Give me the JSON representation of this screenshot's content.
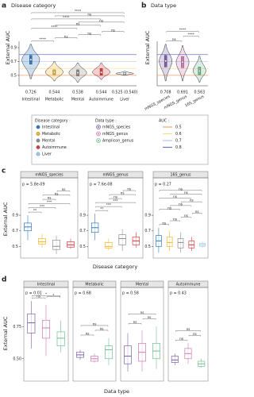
{
  "chart_data": [
    {
      "type": "violin",
      "panel_label": "a",
      "title": "Disease category",
      "y_label": "External AUC",
      "categories": [
        "Intestinal",
        "Metabolic",
        "Mental",
        "Autoimmune",
        "Liver"
      ],
      "values": [
        0.726,
        0.544,
        0.538,
        0.544,
        0.525
      ],
      "value_labels": [
        "0.726",
        "0.544",
        "0.538",
        "0.544",
        "0.525 (0.540)"
      ],
      "q1": [
        0.66,
        0.51,
        0.49,
        0.5,
        0.51
      ],
      "q3": [
        0.79,
        0.58,
        0.58,
        0.6,
        0.54
      ],
      "min": [
        0.45,
        0.42,
        0.4,
        0.44,
        0.5
      ],
      "max": [
        0.95,
        0.7,
        0.68,
        0.68,
        0.56
      ],
      "colors": [
        "#2e7bbf",
        "#f2b824",
        "#8c8c8c",
        "#e0383d",
        "#9ecae8"
      ],
      "ylim": [
        0.35,
        1.45
      ],
      "yticks": [
        0.5,
        0.7,
        0.9
      ],
      "comparisons": [
        {
          "pair": [
            0,
            1
          ],
          "label": "****"
        },
        {
          "pair": [
            1,
            2
          ],
          "label": "ns"
        },
        {
          "pair": [
            2,
            3
          ],
          "label": "ns"
        },
        {
          "pair": [
            3,
            4
          ],
          "label": "ns"
        },
        {
          "pair": [
            0,
            2
          ],
          "label": "****"
        },
        {
          "pair": [
            1,
            3
          ],
          "label": "ns"
        },
        {
          "pair": [
            2,
            4
          ],
          "label": "ns"
        },
        {
          "pair": [
            0,
            3
          ],
          "label": "****"
        },
        {
          "pair": [
            1,
            4
          ],
          "label": "ns"
        },
        {
          "pair": [
            0,
            4
          ],
          "label": "****"
        }
      ]
    },
    {
      "type": "violin",
      "panel_label": "b",
      "title": "Data type",
      "y_label": "External AUC",
      "categories": [
        "mNGS_species",
        "mNGS_genus",
        "16S_genus"
      ],
      "values": [
        0.708,
        0.691,
        0.563
      ],
      "value_labels": [
        "0.708",
        "0.691",
        "0.563"
      ],
      "q1": [
        0.62,
        0.61,
        0.51
      ],
      "q3": [
        0.79,
        0.77,
        0.62
      ],
      "min": [
        0.42,
        0.42,
        0.4
      ],
      "max": [
        0.95,
        0.93,
        0.78
      ],
      "colors": [
        "#7b5ea7",
        "#cc79b5",
        "#6dbf8f"
      ],
      "ylim": [
        0.35,
        1.45
      ],
      "comparisons": [
        {
          "pair": [
            0,
            1
          ],
          "label": "ns"
        },
        {
          "pair": [
            1,
            2
          ],
          "label": "****"
        },
        {
          "pair": [
            0,
            2
          ],
          "label": "****"
        }
      ]
    },
    {
      "type": "box",
      "panel_label": "c",
      "strip_title": "mNGS_species",
      "p_label": "p = 5.8e-09",
      "y_label": "External AUC",
      "values": [
        0.75,
        0.56,
        0.5,
        0.52
      ],
      "q1": [
        0.7,
        0.53,
        0.46,
        0.49
      ],
      "q3": [
        0.8,
        0.6,
        0.58,
        0.56
      ],
      "lo": [
        0.58,
        0.48,
        0.4,
        0.47
      ],
      "hi": [
        0.9,
        0.66,
        0.64,
        0.6
      ],
      "colors": [
        "#2e7bbf",
        "#f2b824",
        "#8c8c8c",
        "#e0383d"
      ],
      "ylim": [
        0.35,
        1.35
      ],
      "yticks": [
        0.5,
        0.7,
        0.9
      ],
      "comparisons": [
        {
          "pair": [
            0,
            1
          ],
          "label": "**"
        },
        {
          "pair": [
            0,
            2
          ],
          "label": "***"
        },
        {
          "pair": [
            0,
            3
          ],
          "label": "***"
        },
        {
          "pair": [
            1,
            2
          ],
          "label": "ns"
        },
        {
          "pair": [
            1,
            3
          ],
          "label": "ns"
        },
        {
          "pair": [
            2,
            3
          ],
          "label": "ns"
        }
      ]
    },
    {
      "type": "box",
      "strip_title": "mNGS_genus",
      "p_label": "p = 7.6e-08",
      "x_label": "Disease category",
      "values": [
        0.74,
        0.5,
        0.6,
        0.57
      ],
      "q1": [
        0.68,
        0.48,
        0.52,
        0.52
      ],
      "q3": [
        0.8,
        0.55,
        0.65,
        0.62
      ],
      "lo": [
        0.58,
        0.45,
        0.44,
        0.48
      ],
      "hi": [
        0.92,
        0.6,
        0.72,
        0.68
      ],
      "colors": [
        "#2e7bbf",
        "#f2b824",
        "#8c8c8c",
        "#e0383d"
      ],
      "ylim": [
        0.35,
        1.35
      ],
      "yticks": [
        0.5,
        0.7,
        0.9
      ],
      "comparisons": [
        {
          "pair": [
            0,
            1
          ],
          "label": "**"
        },
        {
          "pair": [
            0,
            2
          ],
          "label": "***"
        },
        {
          "pair": [
            0,
            3
          ],
          "label": "***"
        },
        {
          "pair": [
            1,
            2
          ],
          "label": "ns"
        },
        {
          "pair": [
            1,
            3
          ],
          "label": "ns"
        },
        {
          "pair": [
            2,
            3
          ],
          "label": "ns"
        }
      ]
    },
    {
      "type": "box",
      "strip_title": "16S_genus",
      "p_label": "p = 0.27",
      "values": [
        0.57,
        0.55,
        0.55,
        0.52,
        0.52
      ],
      "q1": [
        0.5,
        0.5,
        0.48,
        0.48,
        0.5
      ],
      "q3": [
        0.64,
        0.62,
        0.6,
        0.57,
        0.54
      ],
      "lo": [
        0.42,
        0.44,
        0.42,
        0.44,
        0.48
      ],
      "hi": [
        0.74,
        0.7,
        0.68,
        0.62,
        0.56
      ],
      "colors": [
        "#2e7bbf",
        "#f2b824",
        "#8c8c8c",
        "#e0383d",
        "#9ecae8"
      ],
      "ylim": [
        0.35,
        1.35
      ],
      "yticks": [
        0.5,
        0.7,
        0.9
      ],
      "comparisons": [
        {
          "pair": [
            0,
            1
          ],
          "label": "ns"
        },
        {
          "pair": [
            1,
            2
          ],
          "label": "ns"
        },
        {
          "pair": [
            2,
            3
          ],
          "label": "ns"
        },
        {
          "pair": [
            3,
            4
          ],
          "label": "ns"
        },
        {
          "pair": [
            0,
            2
          ],
          "label": "ns"
        },
        {
          "pair": [
            1,
            3
          ],
          "label": "ns"
        },
        {
          "pair": [
            2,
            4
          ],
          "label": "ns"
        },
        {
          "pair": [
            0,
            3
          ],
          "label": "ns"
        },
        {
          "pair": [
            1,
            4
          ],
          "label": "ns"
        },
        {
          "pair": [
            0,
            4
          ],
          "label": "ns"
        }
      ]
    },
    {
      "type": "box",
      "panel_label": "d",
      "strip_title": "Intestinal",
      "p_label": "p = 0.01",
      "y_label": "External AUC",
      "values": [
        0.78,
        0.74,
        0.66
      ],
      "q1": [
        0.7,
        0.66,
        0.6
      ],
      "q3": [
        0.85,
        0.8,
        0.71
      ],
      "lo": [
        0.58,
        0.52,
        0.55
      ],
      "hi": [
        0.95,
        0.92,
        0.8
      ],
      "colors": [
        "#7b5ea7",
        "#cc79b5",
        "#6dbf8f"
      ],
      "ylim": [
        0.325,
        1.05
      ],
      "yticks": [
        {
          "value": 0.5,
          "label": "0.50"
        },
        {
          "value": 0.75,
          "label": "0.75"
        }
      ],
      "comparisons": [
        {
          "pair": [
            0,
            1
          ],
          "label": "ns"
        },
        {
          "pair": [
            1,
            2
          ],
          "label": "*"
        },
        {
          "pair": [
            0,
            2
          ],
          "label": "*"
        }
      ]
    },
    {
      "type": "box",
      "strip_title": "Metabolic",
      "p_label": "p = 0.68",
      "x_label": "Data type",
      "values": [
        0.53,
        0.5,
        0.57
      ],
      "q1": [
        0.51,
        0.48,
        0.5
      ],
      "q3": [
        0.55,
        0.52,
        0.6
      ],
      "lo": [
        0.49,
        0.47,
        0.45
      ],
      "hi": [
        0.57,
        0.54,
        0.66
      ],
      "colors": [
        "#7b5ea7",
        "#cc79b5",
        "#6dbf8f"
      ],
      "ylim": [
        0.325,
        1.05
      ],
      "comparisons": [
        {
          "pair": [
            0,
            1
          ],
          "label": "ns"
        },
        {
          "pair": [
            1,
            2
          ],
          "label": "ns"
        },
        {
          "pair": [
            0,
            2
          ],
          "label": "ns"
        }
      ]
    },
    {
      "type": "box",
      "strip_title": "Mental",
      "p_label": "p = 0.58",
      "values": [
        0.52,
        0.55,
        0.56
      ],
      "q1": [
        0.46,
        0.48,
        0.5
      ],
      "q3": [
        0.6,
        0.62,
        0.62
      ],
      "lo": [
        0.4,
        0.4,
        0.42
      ],
      "hi": [
        0.7,
        0.72,
        0.75
      ],
      "colors": [
        "#7b5ea7",
        "#cc79b5",
        "#6dbf8f"
      ],
      "ylim": [
        0.325,
        1.05
      ],
      "comparisons": [
        {
          "pair": [
            0,
            1
          ],
          "label": "ns"
        },
        {
          "pair": [
            1,
            2
          ],
          "label": "ns"
        },
        {
          "pair": [
            0,
            2
          ],
          "label": "ns"
        }
      ]
    },
    {
      "type": "box",
      "strip_title": "Autoimmune",
      "p_label": "p = 0.43",
      "values": [
        0.49,
        0.54,
        0.46
      ],
      "q1": [
        0.47,
        0.5,
        0.44
      ],
      "q3": [
        0.52,
        0.58,
        0.48
      ],
      "lo": [
        0.45,
        0.46,
        0.43
      ],
      "hi": [
        0.54,
        0.62,
        0.5
      ],
      "colors": [
        "#7b5ea7",
        "#cc79b5",
        "#6dbf8f"
      ],
      "ylim": [
        0.325,
        1.05
      ],
      "comparisons": [
        {
          "pair": [
            0,
            1
          ],
          "label": "ns"
        },
        {
          "pair": [
            1,
            2
          ],
          "label": "ns"
        },
        {
          "pair": [
            0,
            2
          ],
          "label": "ns"
        }
      ]
    }
  ],
  "legend": {
    "sections": [
      {
        "title": "Disease category :",
        "items": [
          {
            "label": "Intestinal",
            "color": "#2e7bbf"
          },
          {
            "label": "Metabolic",
            "color": "#f2b824"
          },
          {
            "label": "Mental",
            "color": "#8c8c8c"
          },
          {
            "label": "Autoimmune",
            "color": "#e0383d"
          },
          {
            "label": "Liver",
            "color": "#9ecae8"
          }
        ]
      },
      {
        "title": "Data type :",
        "items": [
          {
            "label": "mNGS_species",
            "color": "#7b5ea7"
          },
          {
            "label": "mNGS_genus",
            "color": "#cc79b5"
          },
          {
            "label": "Amplicon_genus",
            "color": "#6dbf8f"
          }
        ]
      }
    ],
    "auc": {
      "title": "AUC :",
      "items": [
        {
          "value": 0.5,
          "color": "#f3a46b"
        },
        {
          "value": 0.6,
          "color": "#f6dc8c"
        },
        {
          "value": 0.7,
          "color": "#b9c6e0"
        },
        {
          "value": 0.8,
          "color": "#6f74c9"
        }
      ]
    }
  }
}
